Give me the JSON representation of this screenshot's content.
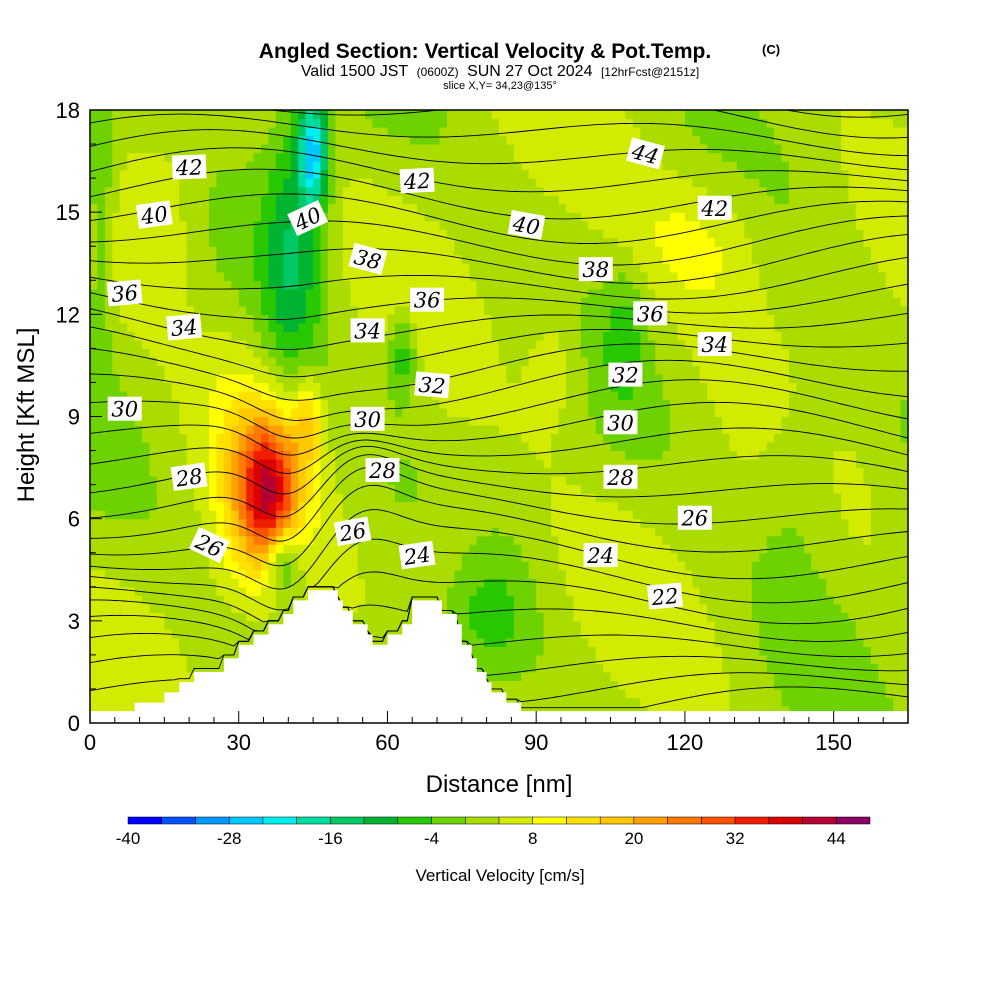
{
  "header": {
    "title": "Angled Section: Vertical Velocity & Pot.Temp.",
    "title_tag": "(C)",
    "valid_prefix": "Valid 1500 JST",
    "valid_utc": "(0600Z)",
    "valid_date": "SUN 27 Oct 2024",
    "forecast": "[12hrFcst@2151z]",
    "slice": "slice X,Y= 34,23@135°"
  },
  "chart_data": {
    "type": "heatmap",
    "xlabel": "Distance [nm]",
    "ylabel": "Height [Kft MSL]",
    "xlim": [
      0,
      165
    ],
    "ylim": [
      0,
      18
    ],
    "x_ticks": [
      0,
      30,
      60,
      90,
      120,
      150
    ],
    "y_ticks": [
      0,
      3,
      6,
      9,
      12,
      15,
      18
    ],
    "colorbar": {
      "title": "Vertical Velocity [cm/s]",
      "ticks": [
        -40,
        -28,
        -16,
        -4,
        8,
        20,
        32,
        44
      ],
      "levels": [
        -40,
        -36,
        -32,
        -28,
        -24,
        -20,
        -16,
        -12,
        -8,
        -4,
        0,
        4,
        8,
        12,
        16,
        20,
        24,
        28,
        32,
        36,
        40,
        44,
        48
      ],
      "colors": [
        "#0000ff",
        "#0050ff",
        "#0096ff",
        "#00c8ff",
        "#00f0f0",
        "#00dca0",
        "#00c864",
        "#00b432",
        "#28c800",
        "#6ed200",
        "#aadc00",
        "#d2eb00",
        "#ffff00",
        "#ffe100",
        "#ffc800",
        "#ffa000",
        "#ff7800",
        "#ff5000",
        "#f01e00",
        "#dc0000",
        "#b40032",
        "#8c0064",
        "#5a008c"
      ]
    },
    "potential_temperature_labels": [
      {
        "value": "42",
        "x": 20,
        "y": 16.3,
        "angle": -2
      },
      {
        "value": "40",
        "x": 13,
        "y": 14.9,
        "angle": -8
      },
      {
        "value": "36",
        "x": 7,
        "y": 12.6,
        "angle": -5
      },
      {
        "value": "34",
        "x": 19,
        "y": 11.6,
        "angle": -5
      },
      {
        "value": "30",
        "x": 7,
        "y": 9.2,
        "angle": 0
      },
      {
        "value": "28",
        "x": 20,
        "y": 7.2,
        "angle": -8
      },
      {
        "value": "26",
        "x": 24,
        "y": 5.2,
        "angle": 25
      },
      {
        "value": "40",
        "x": 44,
        "y": 14.8,
        "angle": -25
      },
      {
        "value": "38",
        "x": 56,
        "y": 13.6,
        "angle": 15
      },
      {
        "value": "42",
        "x": 66,
        "y": 15.9,
        "angle": -3
      },
      {
        "value": "34",
        "x": 56,
        "y": 11.5,
        "angle": 0
      },
      {
        "value": "36",
        "x": 68,
        "y": 12.4,
        "angle": 0
      },
      {
        "value": "32",
        "x": 69,
        "y": 9.9,
        "angle": 5
      },
      {
        "value": "30",
        "x": 56,
        "y": 8.9,
        "angle": 0
      },
      {
        "value": "28",
        "x": 59,
        "y": 7.4,
        "angle": 0
      },
      {
        "value": "26",
        "x": 53,
        "y": 5.6,
        "angle": -10
      },
      {
        "value": "24",
        "x": 66,
        "y": 4.9,
        "angle": -8
      },
      {
        "value": "40",
        "x": 88,
        "y": 14.6,
        "angle": 10
      },
      {
        "value": "44",
        "x": 112,
        "y": 16.7,
        "angle": 15
      },
      {
        "value": "42",
        "x": 126,
        "y": 15.1,
        "angle": 0
      },
      {
        "value": "38",
        "x": 102,
        "y": 13.3,
        "angle": 0
      },
      {
        "value": "36",
        "x": 113,
        "y": 12.0,
        "angle": 0
      },
      {
        "value": "34",
        "x": 126,
        "y": 11.1,
        "angle": 0
      },
      {
        "value": "32",
        "x": 108,
        "y": 10.2,
        "angle": 0
      },
      {
        "value": "30",
        "x": 107,
        "y": 8.8,
        "angle": 0
      },
      {
        "value": "28",
        "x": 107,
        "y": 7.2,
        "angle": 0
      },
      {
        "value": "26",
        "x": 122,
        "y": 6.0,
        "angle": 0
      },
      {
        "value": "24",
        "x": 103,
        "y": 4.9,
        "angle": 0
      },
      {
        "value": "22",
        "x": 116,
        "y": 3.7,
        "angle": -5
      }
    ],
    "terrain_profile": [
      [
        0,
        0.35
      ],
      [
        9,
        0.35
      ],
      [
        9,
        0.6
      ],
      [
        12,
        0.6
      ],
      [
        15,
        0.6
      ],
      [
        15,
        0.9
      ],
      [
        18,
        0.9
      ],
      [
        18,
        1.2
      ],
      [
        21,
        1.2
      ],
      [
        21,
        1.5
      ],
      [
        27,
        1.5
      ],
      [
        27,
        1.9
      ],
      [
        30,
        1.9
      ],
      [
        30,
        2.3
      ],
      [
        33,
        2.3
      ],
      [
        33,
        2.6
      ],
      [
        36,
        2.6
      ],
      [
        36,
        2.9
      ],
      [
        39,
        2.9
      ],
      [
        39,
        3.2
      ],
      [
        41,
        3.2
      ],
      [
        41,
        3.6
      ],
      [
        44,
        3.6
      ],
      [
        44,
        3.9
      ],
      [
        50,
        3.9
      ],
      [
        50,
        3.6
      ],
      [
        51,
        3.6
      ],
      [
        51,
        3.3
      ],
      [
        53,
        3.3
      ],
      [
        53,
        2.9
      ],
      [
        56,
        2.9
      ],
      [
        56,
        2.6
      ],
      [
        57,
        2.6
      ],
      [
        57,
        2.3
      ],
      [
        60,
        2.3
      ],
      [
        60,
        2.6
      ],
      [
        63,
        2.6
      ],
      [
        63,
        2.9
      ],
      [
        65,
        2.9
      ],
      [
        65,
        3.6
      ],
      [
        71,
        3.6
      ],
      [
        71,
        3.2
      ],
      [
        74,
        3.2
      ],
      [
        74,
        2.9
      ],
      [
        75,
        2.9
      ],
      [
        75,
        2.3
      ],
      [
        77,
        2.3
      ],
      [
        77,
        1.9
      ],
      [
        78,
        1.9
      ],
      [
        78,
        1.5
      ],
      [
        80,
        1.5
      ],
      [
        80,
        1.2
      ],
      [
        81,
        1.2
      ],
      [
        81,
        0.9
      ],
      [
        84,
        0.9
      ],
      [
        84,
        0.6
      ],
      [
        87,
        0.6
      ],
      [
        87,
        0.35
      ],
      [
        165,
        0.35
      ]
    ]
  }
}
